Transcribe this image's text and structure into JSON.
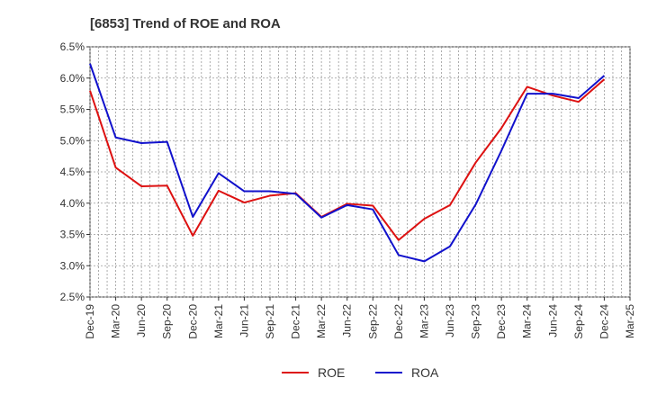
{
  "chart_data": {
    "type": "line",
    "title": "[6853]  Trend of ROE and ROA",
    "xlabel": "",
    "ylabel": "",
    "x": [
      "Dec-19",
      "Mar-20",
      "Jun-20",
      "Sep-20",
      "Dec-20",
      "Mar-21",
      "Jun-21",
      "Sep-21",
      "Dec-21",
      "Mar-22",
      "Jun-22",
      "Sep-22",
      "Dec-22",
      "Mar-23",
      "Jun-23",
      "Sep-23",
      "Dec-23",
      "Mar-24",
      "Jun-24",
      "Sep-24",
      "Dec-24",
      "Mar-25"
    ],
    "yticks": [
      "2.5%",
      "3.0%",
      "3.5%",
      "4.0%",
      "4.5%",
      "5.0%",
      "5.5%",
      "6.0%",
      "6.5%"
    ],
    "ylim": [
      2.5,
      6.5
    ],
    "grid": "dotted",
    "legend_position": "bottom-center",
    "series": [
      {
        "name": "ROE",
        "color": "#dd1111",
        "values": [
          5.8,
          4.57,
          4.27,
          4.28,
          3.48,
          4.2,
          4.01,
          4.12,
          4.16,
          3.78,
          3.99,
          3.96,
          3.41,
          3.75,
          3.97,
          4.65,
          5.2,
          5.86,
          5.72,
          5.62,
          5.98,
          null
        ]
      },
      {
        "name": "ROA",
        "color": "#1111cc",
        "values": [
          6.23,
          5.05,
          4.96,
          4.98,
          3.78,
          4.48,
          4.19,
          4.19,
          4.15,
          3.77,
          3.97,
          3.9,
          3.17,
          3.07,
          3.31,
          3.98,
          4.84,
          5.75,
          5.75,
          5.68,
          6.04,
          null
        ]
      }
    ]
  }
}
